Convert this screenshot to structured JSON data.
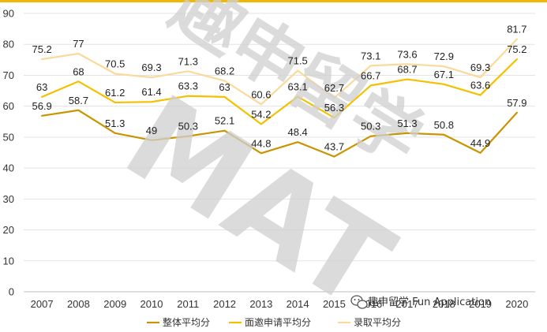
{
  "watermark": {
    "main": "趣申留学",
    "sub": "MAT"
  },
  "badge": {
    "icon": "wechat-icon",
    "text": "趣申留学 Fun Application"
  },
  "chart_data": {
    "type": "line",
    "categories": [
      "2007",
      "2008",
      "2009",
      "2010",
      "2011",
      "2012",
      "2013",
      "2014",
      "2015",
      "2016",
      "2017",
      "2018",
      "2019",
      "2020"
    ],
    "ylim": [
      0,
      90
    ],
    "yticks": [
      0,
      10,
      20,
      30,
      40,
      50,
      60,
      70,
      80,
      90
    ],
    "yticks_labels": [
      "0",
      "10",
      "20",
      "30",
      "40",
      "50",
      "60",
      "70",
      "80",
      "90"
    ],
    "grid": true,
    "legend_position": "bottom",
    "series": [
      {
        "name": "整体平均分",
        "color": "#c99400",
        "values": [
          56.9,
          58.7,
          51.3,
          49,
          50.3,
          52.1,
          44.8,
          48.4,
          43.7,
          50.3,
          51.3,
          50.8,
          44.9,
          57.9
        ],
        "labels": [
          "56.9",
          "58.7",
          "51.3",
          "49",
          "50.3",
          "52.1",
          "44.8",
          "48.4",
          "43.7",
          "50.3",
          "51.3",
          "50.8",
          "44.9",
          "57.9"
        ]
      },
      {
        "name": "面邀申请平均分",
        "color": "#f5c000",
        "values": [
          63,
          68,
          61.2,
          61.4,
          63.3,
          63,
          54.2,
          63.1,
          56.3,
          66.7,
          68.7,
          67.1,
          63.6,
          75.2
        ],
        "labels": [
          "63",
          "68",
          "61.2",
          "61.4",
          "63.3",
          "63",
          "54.2",
          "63.1",
          "56.3",
          "66.7",
          "68.7",
          "67.1",
          "63.6",
          "75.2"
        ]
      },
      {
        "name": "录取平均分",
        "color": "#fbd99a",
        "values": [
          75.2,
          77,
          70.5,
          69.3,
          71.3,
          68.2,
          60.6,
          71.5,
          62.7,
          73.1,
          73.6,
          72.9,
          69.3,
          81.7
        ],
        "labels": [
          "75.2",
          "77",
          "70.5",
          "69.3",
          "71.3",
          "68.2",
          "60.6",
          "71.5",
          "62.7",
          "73.1",
          "73.6",
          "72.9",
          "69.3",
          "81.7"
        ]
      }
    ]
  }
}
